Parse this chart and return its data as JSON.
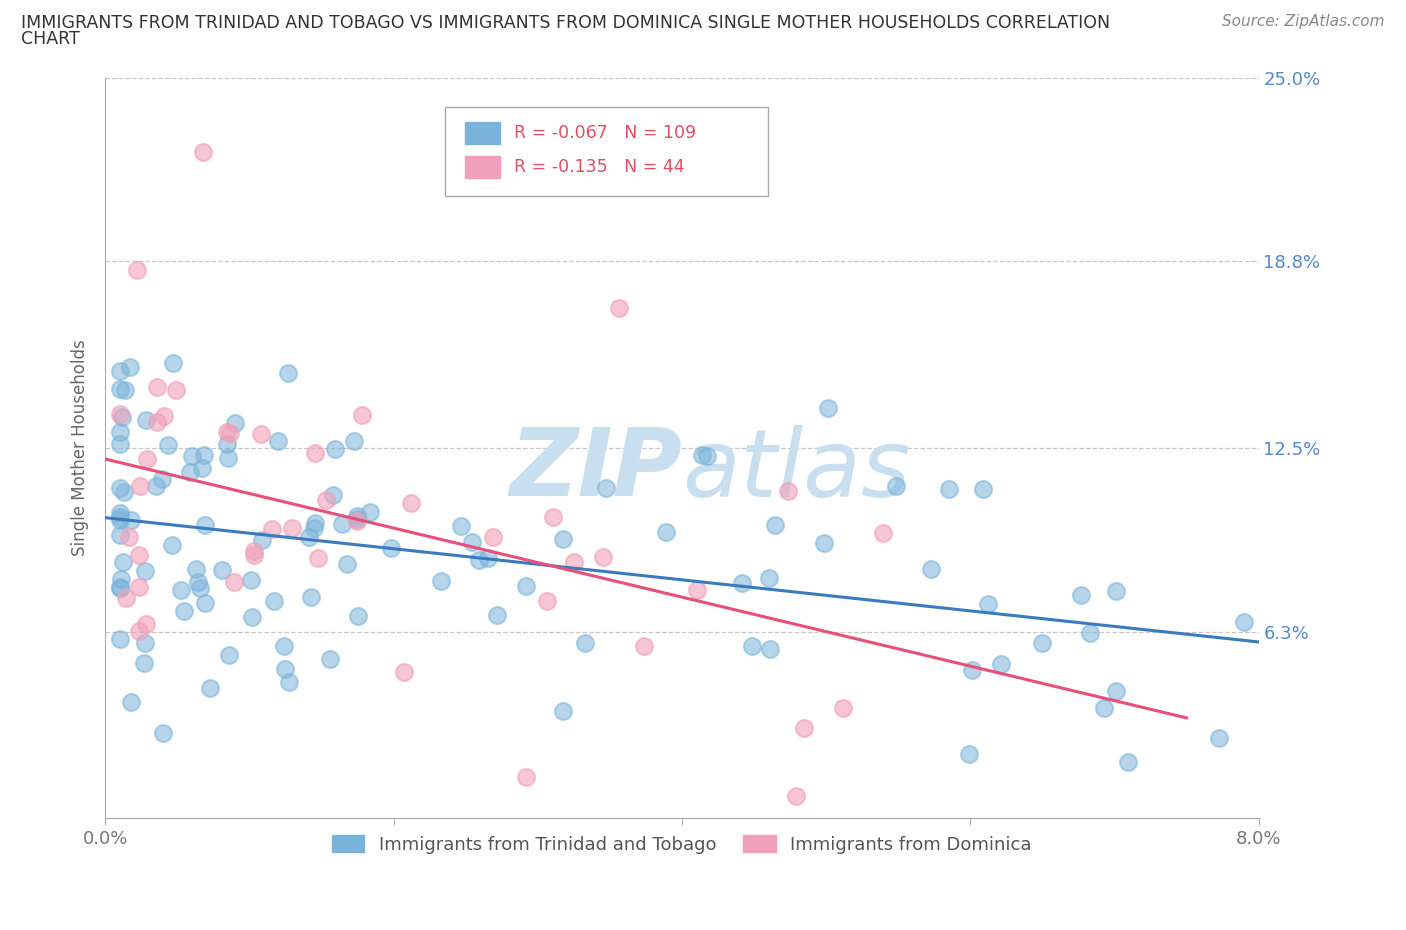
{
  "title_line1": "IMMIGRANTS FROM TRINIDAD AND TOBAGO VS IMMIGRANTS FROM DOMINICA SINGLE MOTHER HOUSEHOLDS CORRELATION",
  "title_line2": "CHART",
  "source_text": "Source: ZipAtlas.com",
  "ylabel": "Single Mother Households",
  "xlim": [
    0.0,
    0.08
  ],
  "ylim": [
    0.0,
    0.25
  ],
  "xtick_vals": [
    0.0,
    0.02,
    0.04,
    0.06,
    0.08
  ],
  "xtick_labels": [
    "0.0%",
    "",
    "",
    "",
    "8.0%"
  ],
  "ytick_vals": [
    0.0,
    0.063,
    0.125,
    0.188,
    0.25
  ],
  "ytick_labels": [
    "",
    "6.3%",
    "12.5%",
    "18.8%",
    "25.0%"
  ],
  "grid_color": "#c8c8c8",
  "background_color": "#ffffff",
  "series1_color": "#7ab3d9",
  "series2_color": "#f0a0b8",
  "series1_label": "Immigrants from Trinidad and Tobago",
  "series2_label": "Immigrants from Dominica",
  "trend1_color": "#3a7bbf",
  "trend2_color": "#e8507a",
  "legend_R1": "-0.067",
  "legend_N1": "109",
  "legend_R2": "-0.135",
  "legend_N2": "44",
  "watermark_color": "#c8dff0",
  "axis_color": "#aaaaaa",
  "tick_label_color": "#777777",
  "right_tick_color": "#5588cc"
}
